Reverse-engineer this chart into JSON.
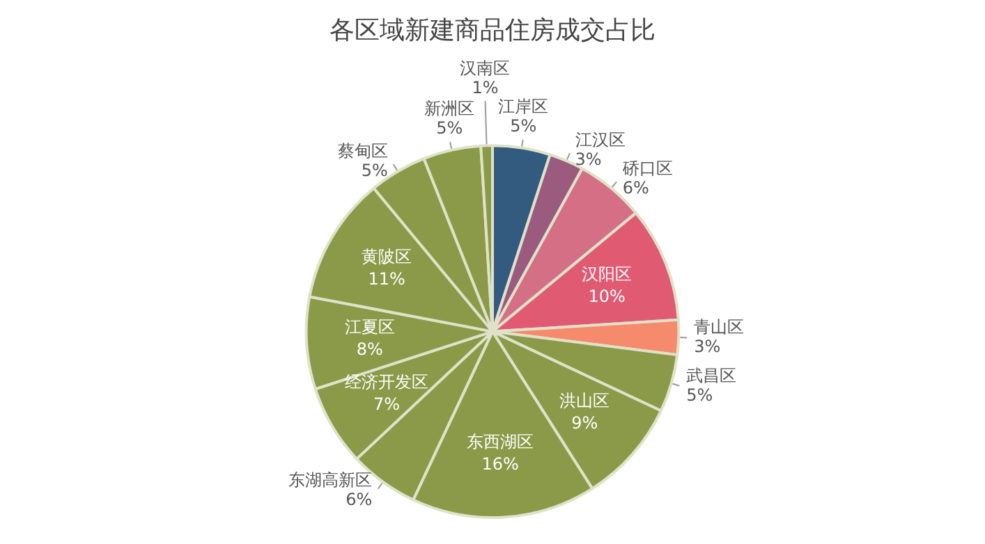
{
  "chart_data": {
    "type": "pie",
    "title": "各区域新建商品住房成交占比",
    "categories": [
      "江岸区",
      "江汉区",
      "硚口区",
      "汉阳区",
      "青山区",
      "武昌区",
      "洪山区",
      "东西湖区",
      "东湖高新区",
      "经济开发区",
      "江夏区",
      "黄陂区",
      "蔡甸区",
      "新洲区",
      "汉南区"
    ],
    "values": [
      5,
      3,
      6,
      10,
      3,
      5,
      9,
      16,
      6,
      7,
      8,
      11,
      5,
      5,
      1
    ],
    "value_labels": [
      "5%",
      "3%",
      "6%",
      "10%",
      "3%",
      "5%",
      "9%",
      "16%",
      "6%",
      "7%",
      "8%",
      "11%",
      "5%",
      "5%",
      "1%"
    ],
    "colors": [
      "#335a7f",
      "#9a5b7e",
      "#d46f86",
      "#e05a72",
      "#f58b6c",
      "#8a9a48",
      "#8a9a48",
      "#8a9a48",
      "#8a9a48",
      "#8a9a48",
      "#8a9a48",
      "#8a9a48",
      "#8a9a48",
      "#8a9a48",
      "#8a9a48"
    ],
    "legend": false
  }
}
